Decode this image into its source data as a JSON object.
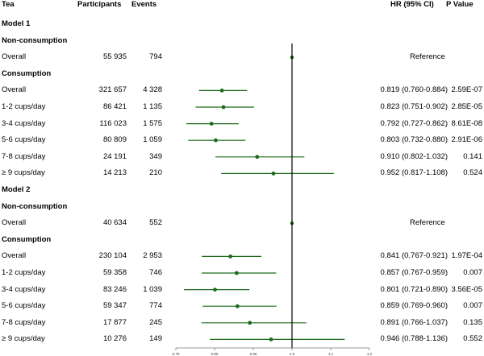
{
  "headers": {
    "tea": "Tea",
    "participants": "Participants",
    "events": "Events",
    "hr": "HR (95% CI)",
    "pvalue": "P Value"
  },
  "colors": {
    "marker": "#1a6b1a",
    "refline": "#000000"
  },
  "chart_data": {
    "type": "forest",
    "title": "",
    "xlim": [
      0.7,
      1.2
    ],
    "xticks": [
      "0.70",
      "0.80",
      "0.90",
      "1.0",
      "1.1",
      "1.2"
    ],
    "reference_value": 1.0,
    "rows": [
      {
        "label": "Model 1",
        "kind": "model"
      },
      {
        "label": "Non-consumption",
        "kind": "group"
      },
      {
        "label": "Overall",
        "kind": "ref",
        "participants": "55 935",
        "events": "794",
        "hr_text": "Reference",
        "p": "",
        "hr": 1.0
      },
      {
        "label": "Consumption",
        "kind": "group"
      },
      {
        "label": "Overall",
        "kind": "data",
        "participants": "321 657",
        "events": "4 328",
        "hr_text": "0.819 (0.760-0.884)",
        "p": "2.59E-07",
        "hr": 0.819,
        "lo": 0.76,
        "hi": 0.884
      },
      {
        "label": "1-2 cups/day",
        "kind": "data",
        "participants": "86 421",
        "events": "1 135",
        "hr_text": "0.823 (0.751-0.902)",
        "p": "2.85E-05",
        "hr": 0.823,
        "lo": 0.751,
        "hi": 0.902
      },
      {
        "label": "3-4 cups/day",
        "kind": "data",
        "participants": "116 023",
        "events": "1 575",
        "hr_text": "0.792 (0.727-0.862)",
        "p": "8.61E-08",
        "hr": 0.792,
        "lo": 0.727,
        "hi": 0.862
      },
      {
        "label": "5-6 cups/day",
        "kind": "data",
        "participants": "80 809",
        "events": "1 059",
        "hr_text": "0.803 (0.732-0.880)",
        "p": "2.91E-06",
        "hr": 0.803,
        "lo": 0.732,
        "hi": 0.88
      },
      {
        "label": "7-8 cups/day",
        "kind": "data",
        "participants": "24 191",
        "events": "349",
        "hr_text": "0.910 (0.802-1.032)",
        "p": "0.141",
        "hr": 0.91,
        "lo": 0.802,
        "hi": 1.032
      },
      {
        "label": "≥ 9 cups/day",
        "kind": "data",
        "participants": "14 213",
        "events": "210",
        "hr_text": "0.952 (0.817-1.108)",
        "p": "0.524",
        "hr": 0.952,
        "lo": 0.817,
        "hi": 1.108
      },
      {
        "label": "Model 2",
        "kind": "model"
      },
      {
        "label": "Non-consumption",
        "kind": "group"
      },
      {
        "label": "Overall",
        "kind": "ref",
        "participants": "40 634",
        "events": "552",
        "hr_text": "Reference",
        "p": "",
        "hr": 1.0
      },
      {
        "label": "Consumption",
        "kind": "group"
      },
      {
        "label": "Overall",
        "kind": "data",
        "participants": "230 104",
        "events": "2 953",
        "hr_text": "0.841 (0.767-0.921)",
        "p": "1.97E-04",
        "hr": 0.841,
        "lo": 0.767,
        "hi": 0.921
      },
      {
        "label": "1-2 cups/day",
        "kind": "data",
        "participants": "59 358",
        "events": "746",
        "hr_text": "0.857 (0.767-0.959)",
        "p": "0.007",
        "hr": 0.857,
        "lo": 0.767,
        "hi": 0.959
      },
      {
        "label": "3-4 cups/day",
        "kind": "data",
        "participants": "83 246",
        "events": "1 039",
        "hr_text": "0.801 (0.721-0.890)",
        "p": "3.56E-05",
        "hr": 0.801,
        "lo": 0.721,
        "hi": 0.89
      },
      {
        "label": "5-6 cups/day",
        "kind": "data",
        "participants": "59 347",
        "events": "774",
        "hr_text": "0.859 (0.769-0.960)",
        "p": "0.007",
        "hr": 0.859,
        "lo": 0.769,
        "hi": 0.96
      },
      {
        "label": "7-8 cups/day",
        "kind": "data",
        "participants": "17 877",
        "events": "245",
        "hr_text": "0.891 (0.766-1.037)",
        "p": "0.135",
        "hr": 0.891,
        "lo": 0.766,
        "hi": 1.037
      },
      {
        "label": "≥ 9 cups/day",
        "kind": "data",
        "participants": "10 276",
        "events": "149",
        "hr_text": "0.946 (0.788-1.136)",
        "p": "0.552",
        "hr": 0.946,
        "lo": 0.788,
        "hi": 1.136
      }
    ]
  }
}
